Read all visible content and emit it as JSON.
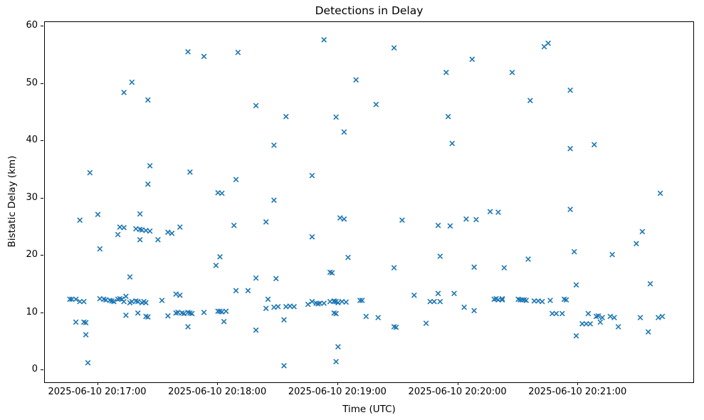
{
  "figure": {
    "title": "Detections in Delay",
    "xlabel": "Time (UTC)",
    "ylabel": "Bistatic Delay (km)"
  },
  "chart_data": {
    "type": "scatter",
    "title": "Detections in Delay",
    "xlabel": "Time (UTC)",
    "ylabel": "Bistatic Delay (km)",
    "marker": "x",
    "marker_color": "#1f77b4",
    "grid": false,
    "legend": "none",
    "time_base": "2025-06-10 20:17:00",
    "x_unit": "seconds relative to time_base",
    "xlim": [
      -26.5,
      297.5
    ],
    "ylim": [
      -2.1,
      60.8
    ],
    "x_ticks": [
      {
        "t": 0,
        "label": "2025-06-10 20:17:00"
      },
      {
        "t": 60,
        "label": "2025-06-10 20:18:00"
      },
      {
        "t": 120,
        "label": "2025-06-10 20:19:00"
      },
      {
        "t": 180,
        "label": "2025-06-10 20:20:00"
      },
      {
        "t": 240,
        "label": "2025-06-10 20:21:00"
      }
    ],
    "y_ticks": [
      0,
      10,
      20,
      30,
      40,
      50,
      60
    ],
    "points": [
      [
        45,
        55.6
      ],
      [
        53,
        54.8
      ],
      [
        17,
        50.3
      ],
      [
        13,
        48.5
      ],
      [
        25,
        47.2
      ],
      [
        113,
        57.7
      ],
      [
        70,
        55.5
      ],
      [
        129,
        50.7
      ],
      [
        79,
        46.2
      ],
      [
        94,
        44.3
      ],
      [
        119,
        44.2
      ],
      [
        123,
        41.6
      ],
      [
        148,
        56.3
      ],
      [
        187,
        54.3
      ],
      [
        174,
        52.0
      ],
      [
        207,
        52.0
      ],
      [
        139,
        46.4
      ],
      [
        216,
        47.1
      ],
      [
        175,
        44.3
      ],
      [
        177,
        39.6
      ],
      [
        223,
        56.5
      ],
      [
        225,
        57.1
      ],
      [
        236,
        48.9
      ],
      [
        236,
        38.7
      ],
      [
        248,
        39.4
      ],
      [
        88,
        39.3
      ],
      [
        26,
        35.7
      ],
      [
        -4,
        34.5
      ],
      [
        46,
        34.6
      ],
      [
        25,
        32.5
      ],
      [
        0,
        27.2
      ],
      [
        -9,
        26.2
      ],
      [
        21,
        27.3
      ],
      [
        11,
        25.0
      ],
      [
        13,
        24.9
      ],
      [
        19,
        24.7
      ],
      [
        21,
        24.6
      ],
      [
        22,
        24.5
      ],
      [
        24,
        24.4
      ],
      [
        26,
        24.3
      ],
      [
        10,
        23.7
      ],
      [
        35,
        24.1
      ],
      [
        37,
        23.9
      ],
      [
        41,
        25.0
      ],
      [
        21,
        22.8
      ],
      [
        30,
        22.8
      ],
      [
        1,
        21.2
      ],
      [
        69,
        33.3
      ],
      [
        60,
        31.0
      ],
      [
        62,
        30.9
      ],
      [
        107,
        34.0
      ],
      [
        88,
        29.7
      ],
      [
        84,
        25.9
      ],
      [
        68,
        25.3
      ],
      [
        121,
        26.6
      ],
      [
        123,
        26.4
      ],
      [
        107,
        23.3
      ],
      [
        61,
        19.8
      ],
      [
        125,
        19.7
      ],
      [
        152,
        26.2
      ],
      [
        170,
        25.3
      ],
      [
        176,
        25.2
      ],
      [
        184,
        26.4
      ],
      [
        189,
        26.3
      ],
      [
        196,
        27.7
      ],
      [
        200,
        27.6
      ],
      [
        171,
        19.9
      ],
      [
        215,
        19.4
      ],
      [
        281,
        30.9
      ],
      [
        236,
        28.1
      ],
      [
        272,
        24.2
      ],
      [
        269,
        22.1
      ],
      [
        238,
        20.7
      ],
      [
        257,
        20.2
      ],
      [
        16,
        16.3
      ],
      [
        -14,
        12.4
      ],
      [
        -13,
        12.4
      ],
      [
        -11,
        12.4
      ],
      [
        -9,
        12.0
      ],
      [
        -7,
        12.0
      ],
      [
        1,
        12.5
      ],
      [
        3,
        12.4
      ],
      [
        4,
        12.3
      ],
      [
        6,
        12.2
      ],
      [
        7,
        12.1
      ],
      [
        8,
        12.0
      ],
      [
        10,
        12.4
      ],
      [
        11,
        12.5
      ],
      [
        12,
        12.4
      ],
      [
        13,
        12.0
      ],
      [
        14,
        12.9
      ],
      [
        16,
        11.8
      ],
      [
        17,
        12.0
      ],
      [
        19,
        12.1
      ],
      [
        20,
        12.0
      ],
      [
        22,
        11.8
      ],
      [
        23,
        12.0
      ],
      [
        24,
        11.8
      ],
      [
        32,
        12.2
      ],
      [
        39,
        13.3
      ],
      [
        41,
        13.1
      ],
      [
        14,
        9.6
      ],
      [
        20,
        10.0
      ],
      [
        24,
        9.4
      ],
      [
        25,
        9.3
      ],
      [
        35,
        9.5
      ],
      [
        39,
        10.0
      ],
      [
        40,
        10.1
      ],
      [
        42,
        10.0
      ],
      [
        43,
        9.9
      ],
      [
        45,
        10.1
      ],
      [
        46,
        10.0
      ],
      [
        47,
        9.9
      ],
      [
        53,
        10.1
      ],
      [
        -11,
        8.4
      ],
      [
        -7,
        8.4
      ],
      [
        -6,
        8.3
      ],
      [
        45,
        7.6
      ],
      [
        -6,
        6.2
      ],
      [
        -5,
        1.3
      ],
      [
        59,
        18.3
      ],
      [
        79,
        16.1
      ],
      [
        89,
        16.0
      ],
      [
        116,
        17.1
      ],
      [
        117,
        17.0
      ],
      [
        69,
        13.9
      ],
      [
        75,
        13.9
      ],
      [
        85,
        12.4
      ],
      [
        84,
        10.8
      ],
      [
        88,
        11.0
      ],
      [
        90,
        11.1
      ],
      [
        94,
        11.1
      ],
      [
        96,
        11.2
      ],
      [
        98,
        11.1
      ],
      [
        60,
        10.3
      ],
      [
        61,
        10.3
      ],
      [
        62,
        10.2
      ],
      [
        64,
        10.3
      ],
      [
        63,
        8.5
      ],
      [
        79,
        7.0
      ],
      [
        93,
        8.8
      ],
      [
        105,
        11.5
      ],
      [
        107,
        12.0
      ],
      [
        109,
        11.7
      ],
      [
        110,
        11.6
      ],
      [
        111,
        11.7
      ],
      [
        113,
        11.7
      ],
      [
        116,
        12.0
      ],
      [
        118,
        12.1
      ],
      [
        118,
        12.0
      ],
      [
        119,
        12.0
      ],
      [
        120,
        11.8
      ],
      [
        122,
        12.0
      ],
      [
        124,
        11.9
      ],
      [
        131,
        12.2
      ],
      [
        132,
        12.2
      ],
      [
        118,
        10.0
      ],
      [
        119,
        9.9
      ],
      [
        120,
        4.1
      ],
      [
        119,
        1.5
      ],
      [
        93,
        0.8
      ],
      [
        148,
        17.9
      ],
      [
        188,
        18.0
      ],
      [
        203,
        17.9
      ],
      [
        158,
        13.1
      ],
      [
        166,
        12.0
      ],
      [
        168,
        12.0
      ],
      [
        170,
        13.4
      ],
      [
        171,
        12.0
      ],
      [
        178,
        13.4
      ],
      [
        183,
        11.0
      ],
      [
        188,
        10.4
      ],
      [
        134,
        9.4
      ],
      [
        140,
        9.2
      ],
      [
        148,
        7.6
      ],
      [
        149,
        7.5
      ],
      [
        164,
        8.2
      ],
      [
        198,
        12.4
      ],
      [
        199,
        12.5
      ],
      [
        200,
        12.3
      ],
      [
        202,
        12.3
      ],
      [
        202,
        12.5
      ],
      [
        210,
        12.4
      ],
      [
        211,
        12.3
      ],
      [
        212,
        12.3
      ],
      [
        213,
        12.3
      ],
      [
        214,
        12.2
      ],
      [
        239,
        14.9
      ],
      [
        276,
        15.1
      ],
      [
        218,
        12.1
      ],
      [
        220,
        12.1
      ],
      [
        222,
        12.0
      ],
      [
        226,
        12.2
      ],
      [
        233,
        12.4
      ],
      [
        234,
        12.3
      ],
      [
        227,
        9.9
      ],
      [
        229,
        9.9
      ],
      [
        232,
        9.9
      ],
      [
        245,
        9.9
      ],
      [
        242,
        8.1
      ],
      [
        244,
        8.1
      ],
      [
        246,
        8.1
      ],
      [
        249,
        9.4
      ],
      [
        250,
        9.5
      ],
      [
        252,
        9.2
      ],
      [
        251,
        8.4
      ],
      [
        256,
        9.4
      ],
      [
        258,
        9.2
      ],
      [
        260,
        7.6
      ],
      [
        239,
        6.0
      ],
      [
        271,
        9.2
      ],
      [
        275,
        6.7
      ],
      [
        280,
        9.2
      ],
      [
        282,
        9.4
      ]
    ]
  }
}
